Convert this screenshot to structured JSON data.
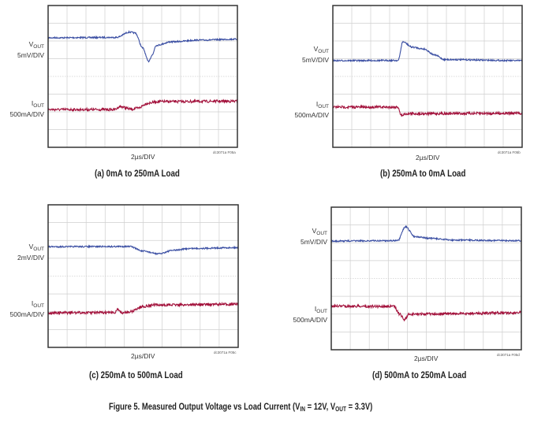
{
  "figure_caption": {
    "prefix": "Figure 5. Measured Output Voltage vs Load Current (V",
    "vin_sub": "IN",
    "mid": " = 12V, V",
    "vout_sub": "OUT",
    "suffix": " = 3.3V)"
  },
  "colors": {
    "vout_trace": "#3b4fa3",
    "iout_trace": "#a3123c",
    "grid": "#cfcfcf",
    "frame": "#333333"
  },
  "chart_data": [
    {
      "type": "line",
      "caption": "(a) 0mA to 250mA Load",
      "time_scale": "2µs/DIV",
      "code": "dc3071a F05a",
      "grid": {
        "x_divisions": 10,
        "y_divisions": 8
      },
      "series": [
        {
          "name": "V",
          "sub": "OUT",
          "scale": "5mV/DIV",
          "points": [
            [
              0,
              2.18
            ],
            [
              3.6,
              2.2
            ],
            [
              4.3,
              2.5
            ],
            [
              4.6,
              2.45
            ],
            [
              5.0,
              1.6
            ],
            [
              5.3,
              0.85
            ],
            [
              5.5,
              1.2
            ],
            [
              5.7,
              1.75
            ],
            [
              6.5,
              1.95
            ],
            [
              8,
              2.05
            ],
            [
              10,
              2.1
            ]
          ]
        },
        {
          "name": "I",
          "sub": "OUT",
          "scale": "500mA/DIV",
          "points": [
            [
              0,
              -1.87
            ],
            [
              3.5,
              -1.87
            ],
            [
              3.8,
              -1.7
            ],
            [
              4.4,
              -1.85
            ],
            [
              4.7,
              -1.8
            ],
            [
              5.3,
              -1.5
            ],
            [
              5.8,
              -1.42
            ],
            [
              10,
              -1.4
            ]
          ]
        }
      ]
    },
    {
      "type": "line",
      "caption": "(b) 250mA to 0mA Load",
      "time_scale": "2µs/DIV",
      "code": "dc3071a F05b",
      "grid": {
        "x_divisions": 10,
        "y_divisions": 8
      },
      "series": [
        {
          "name": "V",
          "sub": "OUT",
          "scale": "5mV/DIV",
          "points": [
            [
              0,
              0.89
            ],
            [
              3.45,
              0.9
            ],
            [
              3.7,
              1.95
            ],
            [
              4.2,
              1.65
            ],
            [
              4.8,
              1.55
            ],
            [
              5.4,
              1.2
            ],
            [
              5.9,
              0.95
            ],
            [
              10,
              0.89
            ]
          ]
        },
        {
          "name": "I",
          "sub": "OUT",
          "scale": "500mA/DIV",
          "points": [
            [
              0,
              -1.73
            ],
            [
              3.45,
              -1.73
            ],
            [
              3.6,
              -2.2
            ],
            [
              3.9,
              -2.1
            ],
            [
              10,
              -2.08
            ]
          ]
        }
      ]
    },
    {
      "type": "line",
      "caption": "(c) 250mA to 500mA Load",
      "time_scale": "2µs/DIV",
      "code": "dc3071a F05c",
      "grid": {
        "x_divisions": 10,
        "y_divisions": 8
      },
      "series": [
        {
          "name": "V",
          "sub": "OUT",
          "scale": "2mV/DIV",
          "points": [
            [
              0,
              1.65
            ],
            [
              4.3,
              1.66
            ],
            [
              5.0,
              1.4
            ],
            [
              5.8,
              1.25
            ],
            [
              6.6,
              1.45
            ],
            [
              7.5,
              1.55
            ],
            [
              10,
              1.6
            ]
          ]
        },
        {
          "name": "I",
          "sub": "OUT",
          "scale": "500mA/DIV",
          "points": [
            [
              0,
              -2.06
            ],
            [
              3.5,
              -2.05
            ],
            [
              3.65,
              -1.85
            ],
            [
              3.9,
              -2.08
            ],
            [
              4.3,
              -2.0
            ],
            [
              5.0,
              -1.7
            ],
            [
              5.6,
              -1.62
            ],
            [
              10,
              -1.58
            ]
          ]
        }
      ]
    },
    {
      "type": "line",
      "caption": "(d) 500mA to 250mA Load",
      "time_scale": "2µs/DIV",
      "code": "dc3071a F05d",
      "grid": {
        "x_divisions": 10,
        "y_divisions": 8
      },
      "series": [
        {
          "name": "V",
          "sub": "OUT",
          "scale": "5mV/DIV",
          "points": [
            [
              0,
              2.1
            ],
            [
              3.5,
              2.12
            ],
            [
              3.9,
              2.9
            ],
            [
              4.4,
              2.35
            ],
            [
              5.2,
              2.25
            ],
            [
              6.5,
              2.15
            ],
            [
              10,
              2.12
            ]
          ]
        },
        {
          "name": "I",
          "sub": "OUT",
          "scale": "500mA/DIV",
          "points": [
            [
              0,
              -1.55
            ],
            [
              3.3,
              -1.57
            ],
            [
              3.6,
              -2.0
            ],
            [
              3.85,
              -2.3
            ],
            [
              4.1,
              -2.0
            ],
            [
              6,
              -1.98
            ],
            [
              10,
              -1.92
            ]
          ]
        }
      ]
    }
  ]
}
